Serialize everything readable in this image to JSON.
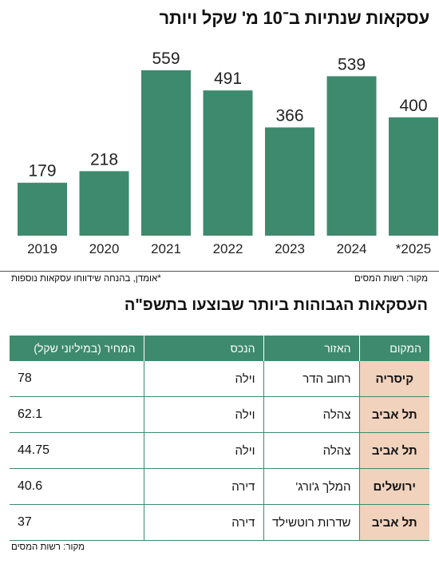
{
  "chart_data": {
    "type": "bar",
    "title": "עסקאות שנתיות ב־10 מ' שקל ויותר",
    "categories": [
      "2019",
      "2020",
      "2021",
      "2022",
      "2023",
      "2024",
      "*2025"
    ],
    "values": [
      179,
      218,
      559,
      491,
      366,
      539,
      400
    ],
    "value_labels": [
      "179",
      "218",
      "559",
      "491",
      "366",
      "539",
      "400"
    ],
    "ylim": [
      0,
      600
    ],
    "grid": false,
    "bar_color": "#3e8a6e"
  },
  "notes": {
    "footnote": "*אומדן, בהנחה שידווחו עסקאות נוספות",
    "source": "מקור: רשות המסים"
  },
  "table": {
    "title": "העסקאות הגבוהות ביותר שבוצעו בתשפ\"ה",
    "headers": {
      "place": "המקום",
      "area": "האזור",
      "asset": "הנכס",
      "price": "המחיר (במיליוני שקל)"
    },
    "rows": [
      {
        "place": "קיסריה",
        "area": "רחוב הדר",
        "asset": "וילה",
        "price": "78"
      },
      {
        "place": "תל אביב",
        "area": "צהלה",
        "asset": "וילה",
        "price": "62.1"
      },
      {
        "place": "תל אביב",
        "area": "צהלה",
        "asset": "וילה",
        "price": "44.75"
      },
      {
        "place": "ירושלים",
        "area": "המלך ג'ורג'",
        "asset": "דירה",
        "price": "40.6"
      },
      {
        "place": "תל אביב",
        "area": "שדרות רוטשילד",
        "asset": "דירה",
        "price": "37"
      }
    ],
    "source": "מקור: רשות המסים"
  },
  "colors": {
    "accent": "#3e8a6e",
    "place_cell": "#f1d2bd"
  }
}
